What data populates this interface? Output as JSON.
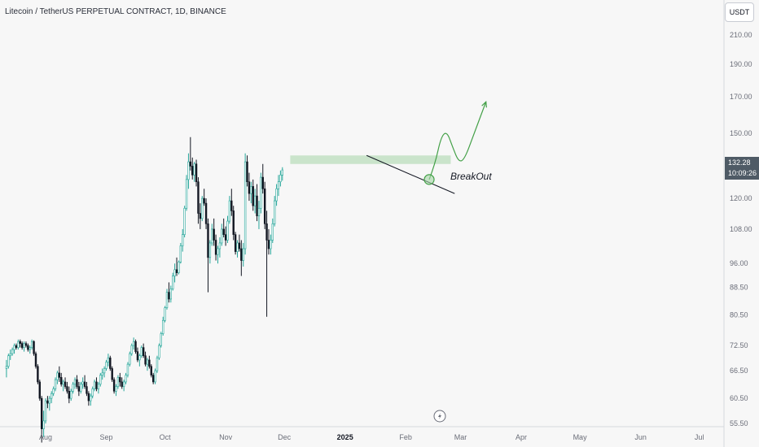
{
  "header": {
    "title": "Litecoin / TetherUS PERPETUAL CONTRACT, 1D, BINANCE"
  },
  "price_axis": {
    "currency": "USDT",
    "last_price": "132.28",
    "countdown": "10:09:26"
  },
  "annotation": {
    "breakout_label": "BreakOut"
  },
  "colors": {
    "up": "#26a69a",
    "down": "#131722",
    "zone": "#a5d6a7",
    "projection": "#43a047",
    "background": "#f7f7f7",
    "price_label_bg": "#4f5b66"
  },
  "chart_data": {
    "type": "candlestick",
    "title": "Litecoin / TetherUS PERPETUAL CONTRACT, 1D, BINANCE",
    "y_scale": "log",
    "y_ticks": [
      "210.00",
      "190.00",
      "170.00",
      "150.00",
      "132.28",
      "120.00",
      "108.00",
      "96.00",
      "88.50",
      "80.50",
      "72.50",
      "66.50",
      "60.50",
      "55.50"
    ],
    "y_tick_values": [
      210,
      190,
      170,
      150,
      132.28,
      120,
      108,
      96,
      88.5,
      80.5,
      72.5,
      66.5,
      60.5,
      55.5
    ],
    "x_ticks": [
      "Aug",
      "Sep",
      "Oct",
      "Nov",
      "Dec",
      "2025",
      "Feb",
      "Mar",
      "Apr",
      "May",
      "Jun",
      "Jul"
    ],
    "x_tick_dates": [
      "2024-08-01",
      "2024-09-01",
      "2024-10-01",
      "2024-11-01",
      "2024-12-01",
      "2025-01-01",
      "2025-02-01",
      "2025-03-01",
      "2025-04-01",
      "2025-05-01",
      "2025-06-01",
      "2025-07-01"
    ],
    "start_date": "2024-07-12",
    "candles": [
      [
        67.0,
        69.0,
        65.0,
        67.5
      ],
      [
        67.5,
        70.5,
        67,
        70
      ],
      [
        70,
        71.5,
        69,
        70.5
      ],
      [
        70.5,
        72,
        70,
        71.5
      ],
      [
        71.5,
        73,
        70.5,
        72.5
      ],
      [
        72.5,
        73,
        71.5,
        72
      ],
      [
        72,
        74,
        71.5,
        73.5
      ],
      [
        73.5,
        74,
        72,
        73
      ],
      [
        73,
        73.5,
        71.5,
        72
      ],
      [
        72,
        73.5,
        71,
        73
      ],
      [
        73,
        73.5,
        72,
        72.5
      ],
      [
        72.5,
        73,
        71,
        71.5
      ],
      [
        71.5,
        72.5,
        70.5,
        72
      ],
      [
        72,
        74,
        71.5,
        73.5
      ],
      [
        73.5,
        73.8,
        70,
        70.5
      ],
      [
        70.5,
        71,
        67,
        67.5
      ],
      [
        67.5,
        68,
        63.5,
        64
      ],
      [
        64,
        64.5,
        60,
        60.5
      ],
      [
        60.5,
        61,
        52,
        54.5
      ],
      [
        54.5,
        58,
        53,
        56
      ],
      [
        56,
        60.5,
        55.5,
        60
      ],
      [
        60,
        61,
        58.5,
        59.5
      ],
      [
        59.5,
        61,
        58,
        60.5
      ],
      [
        60.5,
        62,
        59.5,
        61.5
      ],
      [
        61.5,
        63,
        61,
        62.5
      ],
      [
        62.5,
        65,
        62,
        64.5
      ],
      [
        64.5,
        66.5,
        63.5,
        66
      ],
      [
        66,
        67.5,
        64,
        65
      ],
      [
        65,
        66,
        63,
        63.5
      ],
      [
        63.5,
        64.5,
        62,
        64
      ],
      [
        64,
        65,
        62.5,
        63
      ],
      [
        63,
        64,
        61.5,
        62
      ],
      [
        62,
        63,
        59.5,
        60.5
      ],
      [
        60.5,
        62.5,
        60,
        62
      ],
      [
        62,
        64,
        61.5,
        63.5
      ],
      [
        63.5,
        65,
        62.5,
        64.5
      ],
      [
        64.5,
        65.5,
        62.5,
        63
      ],
      [
        63,
        64,
        61,
        62
      ],
      [
        62,
        64,
        61.5,
        63.5
      ],
      [
        63.5,
        65,
        62.5,
        64
      ],
      [
        64,
        65.5,
        62.5,
        63
      ],
      [
        63,
        64,
        61,
        61.5
      ],
      [
        61.5,
        62,
        59,
        60
      ],
      [
        60,
        61.5,
        59,
        61
      ],
      [
        61,
        63,
        60.5,
        62.5
      ],
      [
        62.5,
        64.5,
        62,
        64
      ],
      [
        64,
        65,
        62,
        62.5
      ],
      [
        62.5,
        64,
        61.5,
        63.5
      ],
      [
        63.5,
        66,
        63,
        65.5
      ],
      [
        65.5,
        67,
        64.5,
        66
      ],
      [
        66,
        67.5,
        65,
        67
      ],
      [
        67,
        69,
        66.5,
        68.5
      ],
      [
        68.5,
        70.5,
        67.5,
        69.5
      ],
      [
        69.5,
        70,
        66.5,
        67
      ],
      [
        67,
        67.5,
        64,
        64.5
      ],
      [
        64.5,
        65,
        61.5,
        62
      ],
      [
        62,
        63.5,
        61,
        63
      ],
      [
        63,
        65.5,
        62.5,
        65
      ],
      [
        65,
        66,
        63,
        64
      ],
      [
        64,
        65,
        62.5,
        63
      ],
      [
        63,
        64.5,
        62,
        64
      ],
      [
        64,
        66,
        63.5,
        65.5
      ],
      [
        65.5,
        68.5,
        65,
        68
      ],
      [
        68,
        71,
        67.5,
        70.5
      ],
      [
        70.5,
        73,
        70,
        72.5
      ],
      [
        72.5,
        74.5,
        71.5,
        73.5
      ],
      [
        73.5,
        74,
        70.5,
        71
      ],
      [
        71,
        72,
        68.5,
        69
      ],
      [
        69,
        70.5,
        67.5,
        70
      ],
      [
        70,
        72.5,
        69.5,
        72
      ],
      [
        72,
        73,
        69.5,
        70
      ],
      [
        70,
        71,
        67.5,
        68
      ],
      [
        68,
        69.5,
        66.5,
        69
      ],
      [
        69,
        70,
        67,
        67.5
      ],
      [
        67.5,
        68,
        65,
        65.5
      ],
      [
        65.5,
        66,
        63.5,
        64
      ],
      [
        64,
        67,
        63.5,
        66.5
      ],
      [
        66.5,
        70,
        66,
        69.5
      ],
      [
        69.5,
        73,
        69,
        72.5
      ],
      [
        72.5,
        76,
        72,
        75.5
      ],
      [
        75.5,
        80,
        75,
        79
      ],
      [
        79,
        83,
        78.5,
        82.5
      ],
      [
        82.5,
        88,
        82,
        87
      ],
      [
        87,
        90,
        84,
        85
      ],
      [
        85,
        89,
        84,
        88
      ],
      [
        88,
        93,
        87.5,
        92
      ],
      [
        92,
        96,
        90,
        94
      ],
      [
        94,
        98,
        92,
        93
      ],
      [
        93,
        97,
        92.5,
        96.5
      ],
      [
        96.5,
        103,
        96,
        102
      ],
      [
        102,
        108,
        100,
        106
      ],
      [
        106,
        117,
        105,
        116
      ],
      [
        116,
        130,
        115,
        128
      ],
      [
        128,
        140,
        124,
        136
      ],
      [
        136,
        148,
        132,
        134
      ],
      [
        134,
        138,
        128,
        130
      ],
      [
        130,
        136,
        127,
        135
      ],
      [
        135,
        137,
        125,
        127
      ],
      [
        127,
        129,
        110,
        114
      ],
      [
        114,
        118,
        108,
        112
      ],
      [
        112,
        121,
        111,
        120
      ],
      [
        120,
        124,
        117,
        118
      ],
      [
        118,
        120,
        108,
        110
      ],
      [
        110,
        112,
        87,
        98
      ],
      [
        98,
        104,
        96,
        103
      ],
      [
        103,
        110,
        102,
        108
      ],
      [
        108,
        112,
        102,
        104
      ],
      [
        104,
        106,
        97,
        99
      ],
      [
        99,
        102,
        96,
        101
      ],
      [
        101,
        105,
        98,
        103
      ],
      [
        103,
        110,
        102,
        108
      ],
      [
        108,
        112,
        105,
        106
      ],
      [
        106,
        109,
        102,
        104
      ],
      [
        104,
        113,
        103,
        111
      ],
      [
        111,
        121,
        110,
        119
      ],
      [
        119,
        124,
        113,
        115
      ],
      [
        115,
        117,
        104,
        106
      ],
      [
        106,
        107,
        99,
        100
      ],
      [
        100,
        104,
        98,
        103
      ],
      [
        103,
        106,
        100,
        101
      ],
      [
        101,
        104,
        92,
        97
      ],
      [
        97,
        103,
        95,
        101
      ],
      [
        101,
        140,
        99,
        136
      ],
      [
        136,
        139,
        125,
        127
      ],
      [
        127,
        131,
        119,
        122
      ],
      [
        122,
        127,
        118,
        125
      ],
      [
        125,
        128,
        115,
        117
      ],
      [
        117,
        124,
        114,
        121
      ],
      [
        121,
        126,
        111,
        113
      ],
      [
        113,
        119,
        108,
        116
      ],
      [
        116,
        131,
        114,
        129
      ],
      [
        129,
        135,
        122,
        124
      ],
      [
        124,
        127,
        108,
        110
      ],
      [
        110,
        115,
        80,
        104
      ],
      [
        104,
        108,
        99,
        101
      ],
      [
        101,
        106,
        99,
        104
      ],
      [
        104,
        112,
        103,
        110
      ],
      [
        110,
        121,
        109,
        119
      ],
      [
        119,
        126,
        117,
        124
      ],
      [
        124,
        130,
        121,
        127
      ],
      [
        127,
        132,
        125,
        130
      ],
      [
        130,
        133.5,
        127.5,
        132.28
      ]
    ],
    "resistance_zone": {
      "from": "2024-12-04",
      "to": "2025-02-24",
      "low": 135,
      "high": 139
    },
    "trendline": {
      "from": [
        "2025-01-12",
        139
      ],
      "to": [
        "2025-02-26",
        122
      ]
    },
    "projection": [
      [
        "2025-02-13",
        128
      ],
      [
        "2025-02-16",
        135
      ],
      [
        "2025-02-19",
        148
      ],
      [
        "2025-02-22",
        151
      ],
      [
        "2025-02-25",
        143
      ],
      [
        "2025-02-28",
        136
      ],
      [
        "2025-03-03",
        137
      ],
      [
        "2025-03-08",
        150
      ],
      [
        "2025-03-14",
        167
      ]
    ],
    "breakout_point": {
      "date": "2025-02-13",
      "value": 128
    }
  }
}
